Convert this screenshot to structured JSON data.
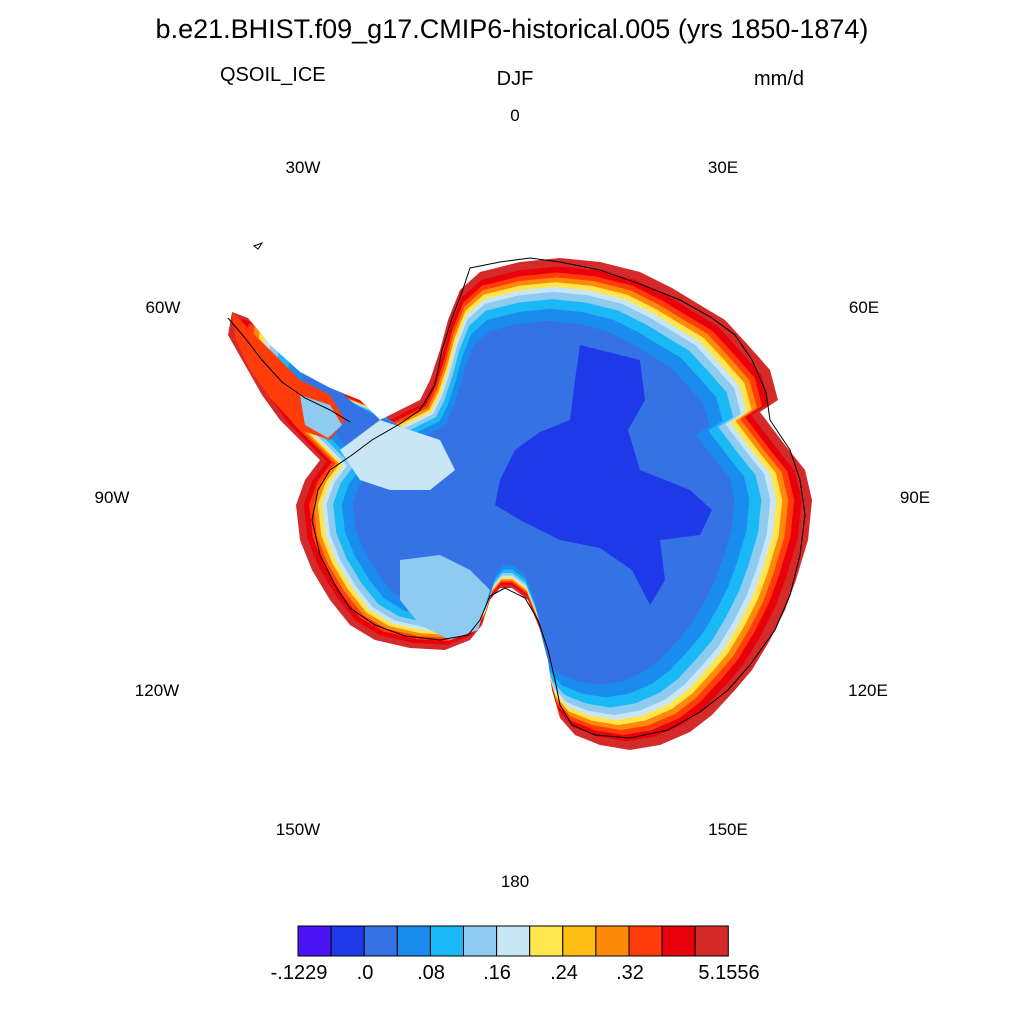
{
  "title": "b.e21.BHIST.f09_g17.CMIP6-historical.005 (yrs 1850-1874)",
  "variable": "QSOIL_ICE",
  "season": "DJF",
  "units": "mm/d",
  "longitude_labels": [
    "0",
    "30E",
    "60E",
    "90E",
    "120E",
    "150E",
    "180",
    "150W",
    "120W",
    "90W",
    "60W",
    "30W"
  ],
  "colorbar": {
    "colors": [
      "#4a14f5",
      "#1e3ae8",
      "#3572e4",
      "#1a8cf0",
      "#1ab8f5",
      "#8ecbf0",
      "#c9e6f6",
      "#ffe64d",
      "#ffbd14",
      "#ff8a0a",
      "#ff3c0a",
      "#e8000a",
      "#d42a2a"
    ],
    "labels": [
      "-.1229",
      ".0",
      ".08",
      ".16",
      ".24",
      ".32",
      "5.1556"
    ]
  },
  "map": {
    "projection": "south-polar-stereographic",
    "region": "Antarctica"
  }
}
